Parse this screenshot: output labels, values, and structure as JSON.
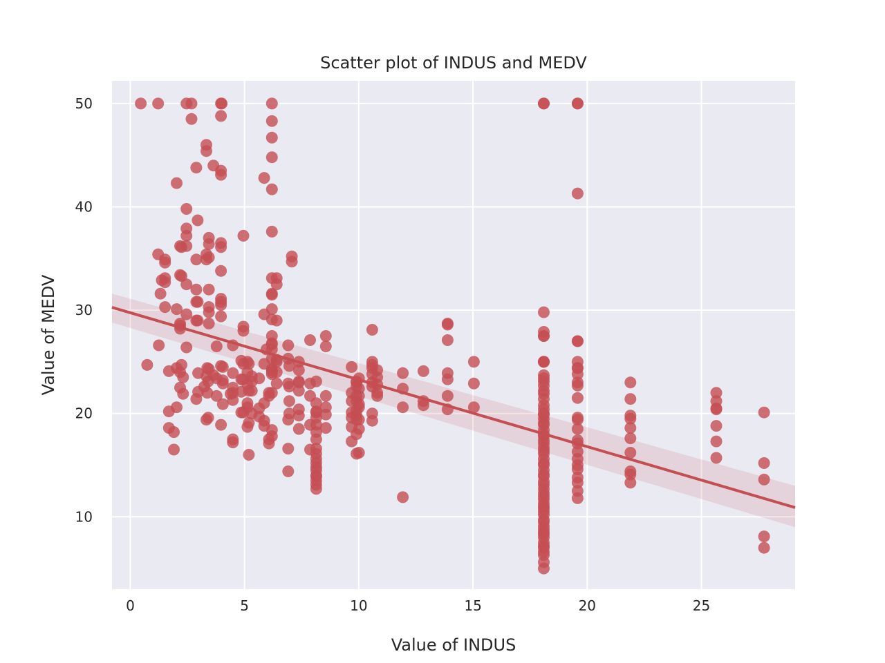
{
  "chart_data": {
    "type": "scatter",
    "title": "Scatter plot of INDUS and MEDV",
    "xlabel": "Value of INDUS",
    "ylabel": "Value of MEDV",
    "xlim": [
      -0.8,
      29.1
    ],
    "ylim": [
      3.0,
      52.2
    ],
    "xticks": [
      0,
      5,
      10,
      15,
      20,
      25
    ],
    "yticks": [
      10,
      20,
      30,
      40,
      50
    ],
    "grid": true,
    "background": "#EAEAF2",
    "point_color": "#C44E52",
    "regression": {
      "intercept": 29.75,
      "slope": -0.648,
      "ci_at_xmin": [
        28.8,
        31.6
      ],
      "ci_at_xmax": [
        9.0,
        13.0
      ]
    },
    "points": [
      [
        0.46,
        50.0
      ],
      [
        1.22,
        50.0
      ],
      [
        2.46,
        50.0
      ],
      [
        2.68,
        50.0
      ],
      [
        3.97,
        50.0
      ],
      [
        4.0,
        50.0
      ],
      [
        6.2,
        50.0
      ],
      [
        18.1,
        50.0
      ],
      [
        18.1,
        50.0
      ],
      [
        19.58,
        50.0
      ],
      [
        19.58,
        50.0
      ],
      [
        2.68,
        48.5
      ],
      [
        3.97,
        48.8
      ],
      [
        6.2,
        48.3
      ],
      [
        6.2,
        46.7
      ],
      [
        3.33,
        46.0
      ],
      [
        3.33,
        45.4
      ],
      [
        6.2,
        44.8
      ],
      [
        3.64,
        44.0
      ],
      [
        2.89,
        43.8
      ],
      [
        3.97,
        43.5
      ],
      [
        3.97,
        43.1
      ],
      [
        5.86,
        42.8
      ],
      [
        2.03,
        42.3
      ],
      [
        6.2,
        41.7
      ],
      [
        19.58,
        41.3
      ],
      [
        2.46,
        39.8
      ],
      [
        2.95,
        38.7
      ],
      [
        2.46,
        37.9
      ],
      [
        6.2,
        37.6
      ],
      [
        4.95,
        37.2
      ],
      [
        2.46,
        37.2
      ],
      [
        3.44,
        37.0
      ],
      [
        3.97,
        36.5
      ],
      [
        3.44,
        36.4
      ],
      [
        2.18,
        36.2
      ],
      [
        2.24,
        36.1
      ],
      [
        2.46,
        36.2
      ],
      [
        3.97,
        36.1
      ],
      [
        1.22,
        35.4
      ],
      [
        3.33,
        35.4
      ],
      [
        3.44,
        35.1
      ],
      [
        7.07,
        35.2
      ],
      [
        2.89,
        34.9
      ],
      [
        3.33,
        34.9
      ],
      [
        1.52,
        34.9
      ],
      [
        7.07,
        34.7
      ],
      [
        1.52,
        34.6
      ],
      [
        3.97,
        33.8
      ],
      [
        2.18,
        33.4
      ],
      [
        2.24,
        33.3
      ],
      [
        6.2,
        33.1
      ],
      [
        6.41,
        33.1
      ],
      [
        1.52,
        33.1
      ],
      [
        1.38,
        32.9
      ],
      [
        1.52,
        32.7
      ],
      [
        6.41,
        32.5
      ],
      [
        2.46,
        32.5
      ],
      [
        3.44,
        32.0
      ],
      [
        2.89,
        32.0
      ],
      [
        6.2,
        31.6
      ],
      [
        6.2,
        31.5
      ],
      [
        1.32,
        31.6
      ],
      [
        3.97,
        31.1
      ],
      [
        3.97,
        30.8
      ],
      [
        2.89,
        30.8
      ],
      [
        3.97,
        30.5
      ],
      [
        3.44,
        30.3
      ],
      [
        1.52,
        30.3
      ],
      [
        2.03,
        30.1
      ],
      [
        6.2,
        30.1
      ],
      [
        3.44,
        29.8
      ],
      [
        5.86,
        29.6
      ],
      [
        2.46,
        29.6
      ],
      [
        3.97,
        29.4
      ],
      [
        6.2,
        29.1
      ],
      [
        6.41,
        29.0
      ],
      [
        2.89,
        29.0
      ],
      [
        3.44,
        28.7
      ],
      [
        2.18,
        28.7
      ],
      [
        2.18,
        28.5
      ],
      [
        13.89,
        28.7
      ],
      [
        13.89,
        28.6
      ],
      [
        4.95,
        28.4
      ],
      [
        2.18,
        28.2
      ],
      [
        10.59,
        28.1
      ],
      [
        4.95,
        28.0
      ],
      [
        6.2,
        27.5
      ],
      [
        8.56,
        27.5
      ],
      [
        18.1,
        27.5
      ],
      [
        18.1,
        27.9
      ],
      [
        13.89,
        27.1
      ],
      [
        19.58,
        27.0
      ],
      [
        7.87,
        27.1
      ],
      [
        6.91,
        26.6
      ],
      [
        4.49,
        26.6
      ],
      [
        1.25,
        26.6
      ],
      [
        8.56,
        26.5
      ],
      [
        6.2,
        26.7
      ],
      [
        2.46,
        26.4
      ],
      [
        5.96,
        26.2
      ],
      [
        6.2,
        26.2
      ],
      [
        6.41,
        25.2
      ],
      [
        18.1,
        25.0
      ],
      [
        18.1,
        25.0
      ],
      [
        19.58,
        25.0
      ],
      [
        15.04,
        25.0
      ],
      [
        10.59,
        25.0
      ],
      [
        6.91,
        25.3
      ],
      [
        6.41,
        25.0
      ],
      [
        9.69,
        24.5
      ],
      [
        10.59,
        24.4
      ],
      [
        5.19,
        24.8
      ],
      [
        4.95,
        24.8
      ],
      [
        3.97,
        24.6
      ],
      [
        2.24,
        24.7
      ],
      [
        0.74,
        24.7
      ],
      [
        6.2,
        24.3
      ],
      [
        6.2,
        24.0
      ],
      [
        1.69,
        24.1
      ],
      [
        2.03,
        24.4
      ],
      [
        2.18,
        24.0
      ],
      [
        5.13,
        24.0
      ],
      [
        10.81,
        24.2
      ],
      [
        11.93,
        23.9
      ],
      [
        12.83,
        24.1
      ],
      [
        13.89,
        23.9
      ],
      [
        19.58,
        23.8
      ],
      [
        19.58,
        24.4
      ],
      [
        5.32,
        23.6
      ],
      [
        4.05,
        23.2
      ],
      [
        3.33,
        23.6
      ],
      [
        3.41,
        23.1
      ],
      [
        3.64,
        23.7
      ],
      [
        7.38,
        23.1
      ],
      [
        4.93,
        23.3
      ],
      [
        5.64,
        23.4
      ],
      [
        9.9,
        23.1
      ],
      [
        10.59,
        23.0
      ],
      [
        13.89,
        23.3
      ],
      [
        15.04,
        22.9
      ],
      [
        18.1,
        23.4
      ],
      [
        18.1,
        23.1
      ],
      [
        19.58,
        23.0
      ],
      [
        21.89,
        23.0
      ],
      [
        8.14,
        23.1
      ],
      [
        6.91,
        22.9
      ],
      [
        4.49,
        22.5
      ],
      [
        3.24,
        22.6
      ],
      [
        2.18,
        22.5
      ],
      [
        5.19,
        22.2
      ],
      [
        6.2,
        22.0
      ],
      [
        6.07,
        22.0
      ],
      [
        7.38,
        22.2
      ],
      [
        9.69,
        22.0
      ],
      [
        10.81,
        22.0
      ],
      [
        11.93,
        22.4
      ],
      [
        12.83,
        21.2
      ],
      [
        13.89,
        21.7
      ],
      [
        18.1,
        21.9
      ],
      [
        19.58,
        21.5
      ],
      [
        21.89,
        21.4
      ],
      [
        25.65,
        22.0
      ],
      [
        25.65,
        21.2
      ],
      [
        25.65,
        20.4
      ],
      [
        2.89,
        21.4
      ],
      [
        4.49,
        21.3
      ],
      [
        6.07,
        21.7
      ],
      [
        7.87,
        21.7
      ],
      [
        8.56,
        21.7
      ],
      [
        9.9,
        21.2
      ],
      [
        10.01,
        20.9
      ],
      [
        10.59,
        20.0
      ],
      [
        10.81,
        21.7
      ],
      [
        12.83,
        20.8
      ],
      [
        13.89,
        20.4
      ],
      [
        15.04,
        20.6
      ],
      [
        18.1,
        20.8
      ],
      [
        18.1,
        20.0
      ],
      [
        21.89,
        19.8
      ],
      [
        25.65,
        20.5
      ],
      [
        27.74,
        20.1
      ],
      [
        5.13,
        20.6
      ],
      [
        5.64,
        19.7
      ],
      [
        6.91,
        19.4
      ],
      [
        8.14,
        20.1
      ],
      [
        8.56,
        19.9
      ],
      [
        9.69,
        19.6
      ],
      [
        9.9,
        19.8
      ],
      [
        11.93,
        20.6
      ],
      [
        18.1,
        19.5
      ],
      [
        19.58,
        19.6
      ],
      [
        21.89,
        19.5
      ],
      [
        3.33,
        19.4
      ],
      [
        3.41,
        19.6
      ],
      [
        2.03,
        20.6
      ],
      [
        1.69,
        20.2
      ],
      [
        3.97,
        18.9
      ],
      [
        4.95,
        20.1
      ],
      [
        5.19,
        19.1
      ],
      [
        5.86,
        18.8
      ],
      [
        6.2,
        18.4
      ],
      [
        7.87,
        18.9
      ],
      [
        8.14,
        18.2
      ],
      [
        9.69,
        18.7
      ],
      [
        10.01,
        18.5
      ],
      [
        18.1,
        18.9
      ],
      [
        18.1,
        18.0
      ],
      [
        19.58,
        18.5
      ],
      [
        21.89,
        18.6
      ],
      [
        25.65,
        18.8
      ],
      [
        1.69,
        18.6
      ],
      [
        1.91,
        18.2
      ],
      [
        6.07,
        17.5
      ],
      [
        6.2,
        17.8
      ],
      [
        8.14,
        17.5
      ],
      [
        9.69,
        17.3
      ],
      [
        18.1,
        17.4
      ],
      [
        18.1,
        16.7
      ],
      [
        19.58,
        17.4
      ],
      [
        21.89,
        17.6
      ],
      [
        25.65,
        17.3
      ],
      [
        4.49,
        17.5
      ],
      [
        4.49,
        17.2
      ],
      [
        6.07,
        17.1
      ],
      [
        6.91,
        16.6
      ],
      [
        7.87,
        16.5
      ],
      [
        8.14,
        16.1
      ],
      [
        10.01,
        16.2
      ],
      [
        18.1,
        16.1
      ],
      [
        18.1,
        15.6
      ],
      [
        19.58,
        16.3
      ],
      [
        21.89,
        16.2
      ],
      [
        25.65,
        15.7
      ],
      [
        27.74,
        15.2
      ],
      [
        1.91,
        16.5
      ],
      [
        5.19,
        16.0
      ],
      [
        8.14,
        15.2
      ],
      [
        8.14,
        14.8
      ],
      [
        18.1,
        15.0
      ],
      [
        18.1,
        14.5
      ],
      [
        19.58,
        15.0
      ],
      [
        21.89,
        14.4
      ],
      [
        21.89,
        14.1
      ],
      [
        6.91,
        14.4
      ],
      [
        8.14,
        14.5
      ],
      [
        8.14,
        13.9
      ],
      [
        8.14,
        13.5
      ],
      [
        8.14,
        13.1
      ],
      [
        8.14,
        12.7
      ],
      [
        18.1,
        13.9
      ],
      [
        18.1,
        13.4
      ],
      [
        18.1,
        12.7
      ],
      [
        19.58,
        13.8
      ],
      [
        19.58,
        13.3
      ],
      [
        21.89,
        13.3
      ],
      [
        27.74,
        13.6
      ],
      [
        18.1,
        12.3
      ],
      [
        18.1,
        11.7
      ],
      [
        11.93,
        11.9
      ],
      [
        19.58,
        11.8
      ],
      [
        18.1,
        11.0
      ],
      [
        18.1,
        10.5
      ],
      [
        18.1,
        10.2
      ],
      [
        18.1,
        9.7
      ],
      [
        18.1,
        9.5
      ],
      [
        18.1,
        8.8
      ],
      [
        18.1,
        8.5
      ],
      [
        18.1,
        8.3
      ],
      [
        18.1,
        7.5
      ],
      [
        18.1,
        7.2
      ],
      [
        18.1,
        7.0
      ],
      [
        18.1,
        6.3
      ],
      [
        18.1,
        5.6
      ],
      [
        18.1,
        5.0
      ],
      [
        27.74,
        8.1
      ],
      [
        27.74,
        7.0
      ],
      [
        18.1,
        22.7
      ],
      [
        18.1,
        22.2
      ],
      [
        18.1,
        21.4
      ],
      [
        18.1,
        20.4
      ],
      [
        18.1,
        19.9
      ],
      [
        18.1,
        19.1
      ],
      [
        18.1,
        18.4
      ],
      [
        18.1,
        17.8
      ],
      [
        18.1,
        17.1
      ],
      [
        18.1,
        16.4
      ],
      [
        18.1,
        15.2
      ],
      [
        18.1,
        14.1
      ],
      [
        18.1,
        13.1
      ],
      [
        18.1,
        12.0
      ],
      [
        18.1,
        11.3
      ],
      [
        18.1,
        10.8
      ],
      [
        18.1,
        9.1
      ],
      [
        18.1,
        8.0
      ],
      [
        18.1,
        6.6
      ],
      [
        18.1,
        29.8
      ],
      [
        18.1,
        27.5
      ],
      [
        18.1,
        25.0
      ],
      [
        18.1,
        23.7
      ],
      [
        19.58,
        27.0
      ],
      [
        19.58,
        24.4
      ],
      [
        19.58,
        22.7
      ],
      [
        19.58,
        19.4
      ],
      [
        19.58,
        17.1
      ],
      [
        19.58,
        15.6
      ],
      [
        19.58,
        14.6
      ],
      [
        19.58,
        12.5
      ],
      [
        8.14,
        19.6
      ],
      [
        8.14,
        18.9
      ],
      [
        8.14,
        16.6
      ],
      [
        8.14,
        15.6
      ],
      [
        8.14,
        14.0
      ],
      [
        9.9,
        19.4
      ],
      [
        9.9,
        20.3
      ],
      [
        9.9,
        21.7
      ],
      [
        9.9,
        22.6
      ],
      [
        9.9,
        23.0
      ],
      [
        9.9,
        18.0
      ],
      [
        9.9,
        16.1
      ],
      [
        10.59,
        22.6
      ],
      [
        10.59,
        23.8
      ],
      [
        10.59,
        24.7
      ],
      [
        10.59,
        19.3
      ],
      [
        10.81,
        22.8
      ],
      [
        10.81,
        23.5
      ],
      [
        7.38,
        20.4
      ],
      [
        7.38,
        18.5
      ],
      [
        7.38,
        23.0
      ],
      [
        7.38,
        24.2
      ],
      [
        7.38,
        25.0
      ],
      [
        6.96,
        20.0
      ],
      [
        6.96,
        21.2
      ],
      [
        6.96,
        24.6
      ],
      [
        5.13,
        21.0
      ],
      [
        5.13,
        22.8
      ],
      [
        5.13,
        18.7
      ],
      [
        5.13,
        25.0
      ],
      [
        5.32,
        22.2
      ],
      [
        5.32,
        20.0
      ],
      [
        5.32,
        23.1
      ],
      [
        5.86,
        21.0
      ],
      [
        5.86,
        24.8
      ],
      [
        5.86,
        19.3
      ],
      [
        4.49,
        23.9
      ],
      [
        4.49,
        22.0
      ],
      [
        4.05,
        22.9
      ],
      [
        4.05,
        24.5
      ],
      [
        4.05,
        20.9
      ],
      [
        3.78,
        23.4
      ],
      [
        3.78,
        21.7
      ],
      [
        3.37,
        22.0
      ],
      [
        3.37,
        24.4
      ],
      [
        4.39,
        21.9
      ],
      [
        4.86,
        23.3
      ],
      [
        4.86,
        20.1
      ],
      [
        4.86,
        25.1
      ],
      [
        4.86,
        22.1
      ],
      [
        2.95,
        29.0
      ],
      [
        2.95,
        30.8
      ],
      [
        3.78,
        26.5
      ],
      [
        6.2,
        26.8
      ],
      [
        6.2,
        24.2
      ],
      [
        6.2,
        23.8
      ],
      [
        6.2,
        25.3
      ],
      [
        5.64,
        20.5
      ],
      [
        6.41,
        22.9
      ],
      [
        6.41,
        24.0
      ],
      [
        6.96,
        22.6
      ],
      [
        7.38,
        19.8
      ],
      [
        7.87,
        22.9
      ],
      [
        8.14,
        21.0
      ],
      [
        8.14,
        20.2
      ],
      [
        8.56,
        18.6
      ],
      [
        8.56,
        20.6
      ],
      [
        9.69,
        20.1
      ],
      [
        9.69,
        21.2
      ],
      [
        10.01,
        19.4
      ],
      [
        10.01,
        20.6
      ],
      [
        10.01,
        21.7
      ],
      [
        10.01,
        22.4
      ],
      [
        10.01,
        23.4
      ],
      [
        3.44,
        24.3
      ],
      [
        2.31,
        23.5
      ],
      [
        2.31,
        21.9
      ],
      [
        2.97,
        23.9
      ],
      [
        2.97,
        22.1
      ]
    ]
  }
}
